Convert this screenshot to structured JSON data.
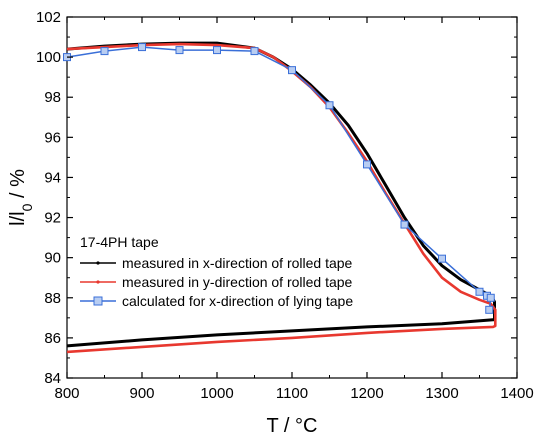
{
  "chart_data": {
    "type": "line",
    "xlim": [
      800,
      1400
    ],
    "ylim": [
      84,
      102
    ],
    "x_ticks": [
      800,
      900,
      1000,
      1100,
      1200,
      1300,
      1400
    ],
    "y_ticks": [
      84,
      86,
      88,
      90,
      92,
      94,
      96,
      98,
      100,
      102
    ],
    "xlabel": "T / °C",
    "ylabel_main": "l/l",
    "ylabel_sub": "0",
    "ylabel_tail": " / %",
    "grid": false,
    "legend": {
      "title": "17-4PH tape",
      "placement": "bottom-left"
    },
    "series": [
      {
        "name": "measured in x-direction of rolled tape",
        "color": "#000000",
        "marker": "dot",
        "x": [
          800,
          850,
          900,
          950,
          1000,
          1050,
          1075,
          1100,
          1125,
          1150,
          1175,
          1200,
          1225,
          1250,
          1275,
          1300,
          1325,
          1350,
          1360,
          1367,
          1370,
          1370,
          1368,
          1300,
          1200,
          1100,
          1000,
          900,
          800
        ],
        "y": [
          100.4,
          100.55,
          100.65,
          100.7,
          100.7,
          100.45,
          100.0,
          99.4,
          98.6,
          97.7,
          96.6,
          95.2,
          93.6,
          92.0,
          90.6,
          89.6,
          88.9,
          88.4,
          88.2,
          88.0,
          87.8,
          86.9,
          86.9,
          86.7,
          86.55,
          86.35,
          86.15,
          85.9,
          85.6
        ]
      },
      {
        "name": "measured in y-direction of rolled tape",
        "color": "#e8382f",
        "marker": "dot",
        "x": [
          800,
          850,
          900,
          950,
          1000,
          1050,
          1075,
          1100,
          1125,
          1150,
          1175,
          1200,
          1225,
          1250,
          1275,
          1300,
          1325,
          1350,
          1365,
          1371,
          1371,
          1368,
          1300,
          1200,
          1100,
          1000,
          900,
          800
        ],
        "y": [
          100.4,
          100.5,
          100.6,
          100.65,
          100.6,
          100.45,
          100.0,
          99.3,
          98.5,
          97.5,
          96.2,
          94.8,
          93.2,
          91.7,
          90.2,
          89.0,
          88.3,
          87.9,
          87.7,
          87.4,
          86.6,
          86.55,
          86.45,
          86.25,
          86.0,
          85.8,
          85.55,
          85.3
        ]
      },
      {
        "name": "calculated for x-direction of lying tape",
        "color": "#3a6fd8",
        "marker": "square",
        "x": [
          800,
          850,
          900,
          950,
          1000,
          1050,
          1100,
          1150,
          1200,
          1250,
          1300,
          1350,
          1360,
          1365,
          1363
        ],
        "y": [
          100.0,
          100.3,
          100.5,
          100.35,
          100.35,
          100.3,
          99.35,
          97.6,
          94.65,
          91.65,
          89.95,
          88.3,
          88.1,
          88.0,
          87.4
        ]
      }
    ]
  }
}
